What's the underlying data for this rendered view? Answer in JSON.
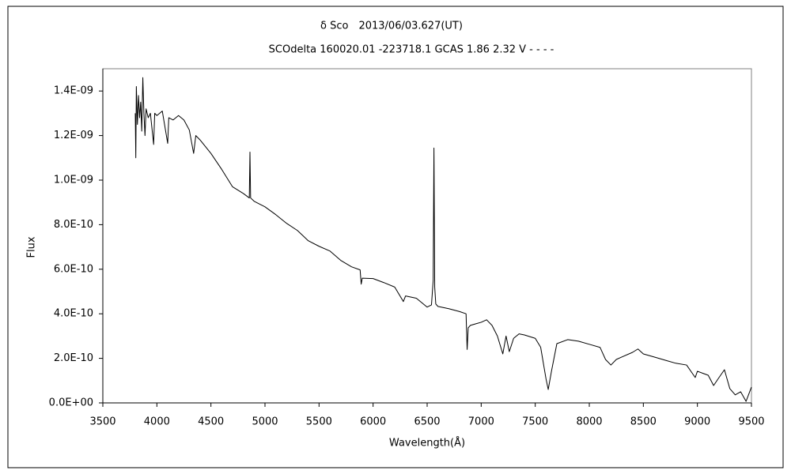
{
  "chart_data": {
    "type": "line",
    "title": "δ Sco　2013/06/03.627(UT)",
    "subtitle": "SCOdelta 160020.01 -223718.1 GCAS 1.86 2.32 V - - - -",
    "x_label": "Wavelength(Å)",
    "y_label": "Flux",
    "xlim": [
      3500,
      9500
    ],
    "xticks": [
      3500,
      4000,
      4500,
      5000,
      5500,
      6000,
      6500,
      7000,
      7500,
      8000,
      8500,
      9000,
      9500
    ],
    "ylim": [
      0,
      1.5e-09
    ],
    "yticks": [
      {
        "value": 0,
        "label": "0.0E+00"
      },
      {
        "value": 2e-10,
        "label": "2.0E-10"
      },
      {
        "value": 4e-10,
        "label": "4.0E-10"
      },
      {
        "value": 6e-10,
        "label": "6.0E-10"
      },
      {
        "value": 8e-10,
        "label": "8.0E-10"
      },
      {
        "value": 1e-09,
        "label": "1.0E-09"
      },
      {
        "value": 1.2e-09,
        "label": "1.2E-09"
      },
      {
        "value": 1.4e-09,
        "label": "1.4E-09"
      }
    ],
    "grid": false,
    "series": [
      {
        "color": "#000000",
        "x": [
          3800,
          3805,
          3810,
          3820,
          3830,
          3840,
          3850,
          3860,
          3870,
          3880,
          3890,
          3900,
          3920,
          3940,
          3970,
          3980,
          4000,
          4050,
          4100,
          4110,
          4150,
          4200,
          4250,
          4300,
          4340,
          4360,
          4400,
          4500,
          4600,
          4700,
          4800,
          4855,
          4861,
          4867,
          4900,
          5000,
          5100,
          5200,
          5300,
          5400,
          5500,
          5600,
          5700,
          5800,
          5880,
          5890,
          5900,
          6000,
          6100,
          6200,
          6280,
          6300,
          6400,
          6500,
          6540,
          6556,
          6563,
          6570,
          6580,
          6600,
          6700,
          6800,
          6860,
          6870,
          6880,
          6900,
          6950,
          7000,
          7050,
          7100,
          7150,
          7200,
          7230,
          7260,
          7300,
          7350,
          7400,
          7500,
          7550,
          7600,
          7620,
          7650,
          7700,
          7800,
          7900,
          8000,
          8100,
          8150,
          8200,
          8250,
          8300,
          8400,
          8450,
          8500,
          8600,
          8700,
          8800,
          8900,
          8980,
          9000,
          9100,
          9150,
          9200,
          9250,
          9300,
          9350,
          9400,
          9450,
          9500
        ],
        "values": [
          1.3e-09,
          1.1e-09,
          1.42e-09,
          1.25e-09,
          1.38e-09,
          1.28e-09,
          1.35e-09,
          1.22e-09,
          1.46e-09,
          1.3e-09,
          1.2e-09,
          1.32e-09,
          1.28e-09,
          1.3e-09,
          1.16e-09,
          1.3e-09,
          1.29e-09,
          1.31e-09,
          1.165e-09,
          1.28e-09,
          1.27e-09,
          1.29e-09,
          1.27e-09,
          1.225e-09,
          1.12e-09,
          1.2e-09,
          1.18e-09,
          1.12e-09,
          1.048e-09,
          9.7e-10,
          9.4e-10,
          9.2e-10,
          1.126e-09,
          9.2e-10,
          9.05e-10,
          8.8e-10,
          8.45e-10,
          8.06e-10,
          7.74e-10,
          7.28e-10,
          7.03e-10,
          6.82e-10,
          6.4e-10,
          6.11e-10,
          5.97e-10,
          5.33e-10,
          5.6e-10,
          5.58e-10,
          5.4e-10,
          5.2e-10,
          4.55e-10,
          4.8e-10,
          4.7e-10,
          4.3e-10,
          4.4e-10,
          5.5e-10,
          1.144e-09,
          5.2e-10,
          4.44e-10,
          4.33e-10,
          4.23e-10,
          4.1e-10,
          4e-10,
          2.4e-10,
          3.37e-10,
          3.48e-10,
          3.55e-10,
          3.62e-10,
          3.73e-10,
          3.48e-10,
          3e-10,
          2.2e-10,
          3e-10,
          2.3e-10,
          2.9e-10,
          3.1e-10,
          3.05e-10,
          2.9e-10,
          2.5e-10,
          1.07e-10,
          6e-11,
          1.42e-10,
          2.66e-10,
          2.84e-10,
          2.77e-10,
          2.63e-10,
          2.49e-10,
          1.95e-10,
          1.7e-10,
          1.95e-10,
          2.06e-10,
          2.27e-10,
          2.42e-10,
          2.2e-10,
          2.06e-10,
          1.92e-10,
          1.78e-10,
          1.7e-10,
          1.14e-10,
          1.42e-10,
          1.24e-10,
          7.8e-11,
          1.14e-10,
          1.49e-10,
          6.4e-11,
          3.6e-11,
          5e-11,
          7e-12,
          7.1e-11
        ]
      }
    ]
  }
}
